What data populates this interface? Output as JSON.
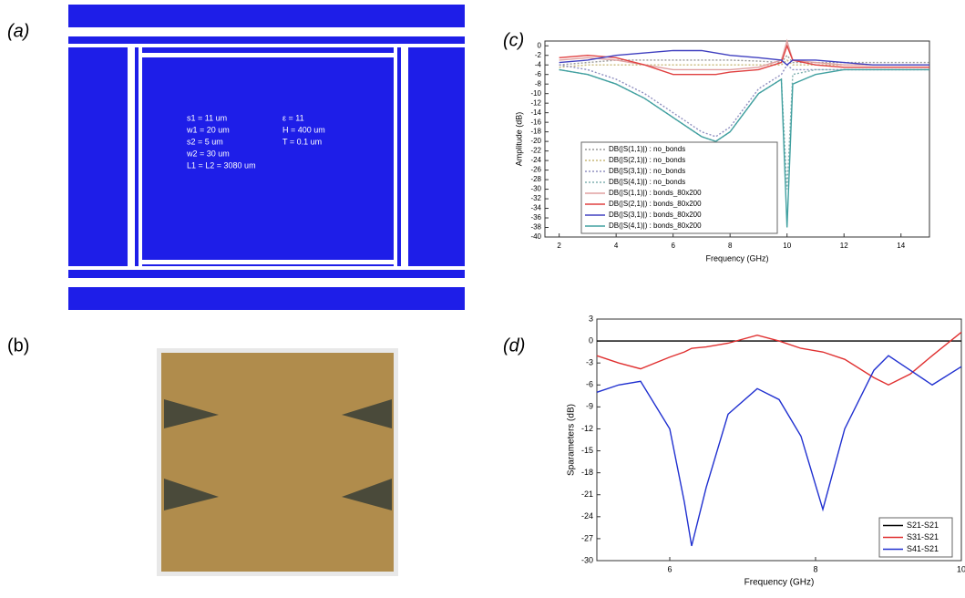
{
  "panel_labels": [
    "(a)",
    "(b)",
    "(c)",
    "(d)"
  ],
  "layout_params": [
    "s1 = 11 um",
    "w1 = 20 um",
    "s2 = 5 um",
    "w2 = 30 um",
    "L1 = L2 = 3080 um",
    "ε = 11",
    "H = 400 um",
    "T = 0.1 um"
  ],
  "chart_data": [
    {
      "type": "line",
      "xlabel": "Frequency (GHz)",
      "ylabel": "Amplitude (dB)",
      "x": [
        2,
        3,
        4,
        5,
        6,
        7,
        7.5,
        8,
        9,
        9.8,
        10,
        10.2,
        11,
        12,
        13,
        14,
        15
      ],
      "xlim": [
        1.5,
        15
      ],
      "xticks": [
        2,
        4,
        6,
        8,
        10,
        12,
        14
      ],
      "ylim": [
        -40,
        1
      ],
      "yticks": [
        0,
        -2,
        -4,
        -6,
        -8,
        -10,
        -12,
        -14,
        -16,
        -18,
        -20,
        -22,
        -24,
        -26,
        -28,
        -30,
        -32,
        -34,
        -36,
        -38,
        -40
      ],
      "legend": "lower left",
      "series": [
        {
          "name": "DB(|S(1,1)|) : no_bonds",
          "color": "#999999",
          "style": "dotted",
          "values": [
            -4,
            -3.5,
            -3,
            -3,
            -3,
            -3,
            -3,
            -3,
            -3.2,
            -3.5,
            -2,
            -3.5,
            -3.5,
            -3.5,
            -3.5,
            -3.5,
            -3.5
          ]
        },
        {
          "name": "DB(|S(2,1)|) : no_bonds",
          "color": "#c8b878",
          "style": "dotted",
          "values": [
            -4.5,
            -4,
            -4,
            -4,
            -4,
            -4,
            -4,
            -4,
            -4,
            -4,
            -3,
            -4,
            -4,
            -4,
            -4,
            -4,
            -4
          ]
        },
        {
          "name": "DB(|S(3,1)|) : no_bonds",
          "color": "#9090c0",
          "style": "dotted",
          "values": [
            -4,
            -5,
            -7,
            -10,
            -14,
            -18,
            -19,
            -17,
            -9,
            -6,
            -4,
            -5,
            -5,
            -5,
            -5,
            -5,
            -5
          ]
        },
        {
          "name": "DB(|S(4,1)|) : no_bonds",
          "color": "#80b0b0",
          "style": "dotted",
          "values": [
            -5,
            -6,
            -8,
            -11,
            -15,
            -19,
            -20,
            -18,
            -10,
            -7,
            -30,
            -6,
            -5,
            -5,
            -5,
            -5,
            -5
          ]
        },
        {
          "name": "DB(|S(1,1)|) : bonds_80x200",
          "color": "#e0a0a0",
          "style": "solid",
          "values": [
            -3,
            -2.5,
            -3,
            -4,
            -5,
            -5,
            -5,
            -5,
            -4.5,
            -3,
            1,
            -3,
            -3.5,
            -4,
            -4,
            -4,
            -4
          ]
        },
        {
          "name": "DB(|S(2,1)|) : bonds_80x200",
          "color": "#e04040",
          "style": "solid",
          "values": [
            -2.5,
            -2,
            -2.5,
            -4,
            -6,
            -6,
            -6,
            -5.5,
            -5,
            -3.5,
            0,
            -3,
            -4,
            -4.5,
            -4.5,
            -4.5,
            -4.5
          ]
        },
        {
          "name": "DB(|S(3,1)|) : bonds_80x200",
          "color": "#4040c0",
          "style": "solid",
          "values": [
            -3.5,
            -3,
            -2,
            -1.5,
            -1,
            -1,
            -1.5,
            -2,
            -2.5,
            -3,
            -4,
            -3,
            -3,
            -3.5,
            -4,
            -4,
            -4
          ]
        },
        {
          "name": "DB(|S(4,1)|) : bonds_80x200",
          "color": "#40a0a0",
          "style": "solid",
          "values": [
            -5,
            -6,
            -8,
            -11,
            -15,
            -19,
            -20,
            -18,
            -10,
            -7,
            -38,
            -8,
            -6,
            -5,
            -5,
            -5,
            -5
          ]
        }
      ]
    },
    {
      "type": "line",
      "xlabel": "Frequency (GHz)",
      "ylabel": "Sparameters (dB)",
      "x": [
        5,
        5.3,
        5.6,
        6,
        6.2,
        6.3,
        6.5,
        6.8,
        7.2,
        7.5,
        7.8,
        8.1,
        8.4,
        8.8,
        9,
        9.3,
        9.6,
        10
      ],
      "xlim": [
        5,
        10
      ],
      "xticks": [
        6,
        8,
        10
      ],
      "ylim": [
        -30,
        3
      ],
      "yticks": [
        3,
        0,
        -3,
        -6,
        -9,
        -12,
        -15,
        -18,
        -21,
        -24,
        -27,
        -30
      ],
      "legend": "lower right",
      "series": [
        {
          "name": "S21-S21",
          "color": "#000000",
          "style": "solid",
          "values": [
            0,
            0,
            0,
            0,
            0,
            0,
            0,
            0,
            0,
            0,
            0,
            0,
            0,
            0,
            0,
            0,
            0,
            0
          ]
        },
        {
          "name": "S31-S21",
          "color": "#e03030",
          "style": "solid",
          "values": [
            -2,
            -3,
            -3.8,
            -2.2,
            -1.5,
            -1,
            -0.8,
            -0.3,
            0.8,
            0,
            -1,
            -1.5,
            -2.5,
            -5,
            -6,
            -4.5,
            -2,
            1.2
          ]
        },
        {
          "name": "S41-S21",
          "color": "#2030d0",
          "style": "solid",
          "values": [
            -7,
            -6,
            -5.5,
            -12,
            -22,
            -28,
            -20,
            -10,
            -6.5,
            -8,
            -13,
            -23,
            -12,
            -4,
            -2,
            -4,
            -6,
            -3.5
          ]
        }
      ]
    }
  ]
}
